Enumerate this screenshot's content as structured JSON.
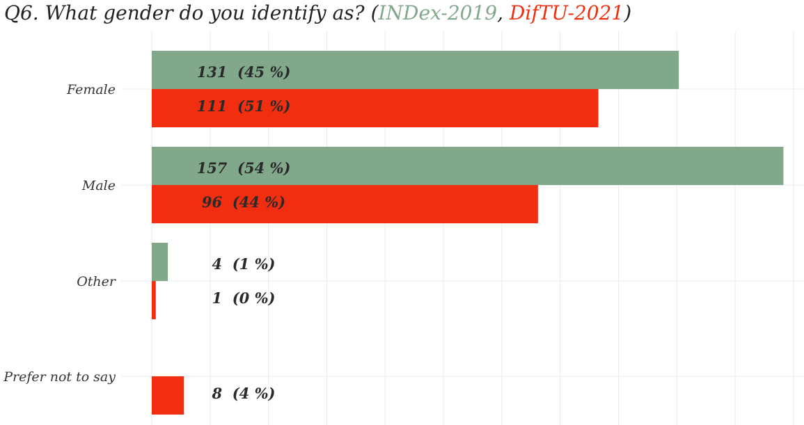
{
  "title": {
    "prefix": "Q6. What gender do you identify as? (",
    "series_a": "INDex-2019",
    "separator": ", ",
    "series_b": "DifTU-2021",
    "suffix": ")"
  },
  "colors": {
    "series_a": "#82a88c",
    "series_b": "#f22e10",
    "grid": "#ebebeb",
    "text": "#333333"
  },
  "chart_data": {
    "type": "bar",
    "orientation": "horizontal",
    "categories": [
      "Female",
      "Male",
      "Other",
      "Prefer not to say"
    ],
    "series": [
      {
        "name": "INDex-2019",
        "values": [
          131,
          157,
          4,
          0
        ],
        "labels": [
          "131  (45 %)",
          "157  (54 %)",
          "4  (1 %)",
          ""
        ]
      },
      {
        "name": "DifTU-2021",
        "values": [
          111,
          96,
          1,
          8
        ],
        "labels": [
          "111  (51 %)",
          "96  (44 %)",
          "1  (0 %)",
          "8  (4 %)"
        ]
      }
    ],
    "xlim": [
      0,
      160
    ],
    "grid": true,
    "legend": "in title"
  }
}
